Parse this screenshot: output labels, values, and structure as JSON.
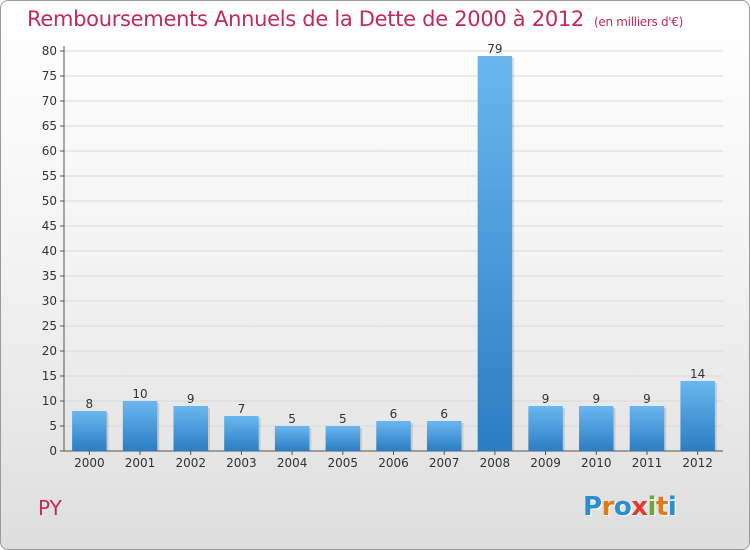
{
  "title": "Remboursements Annuels de la Dette de 2000 à 2012",
  "unit_note": "(en milliers d'€)",
  "commune": "PY",
  "logo": {
    "letters": [
      {
        "ch": "P",
        "color": "#2a8fcf"
      },
      {
        "ch": "r",
        "color": "#e07b1c"
      },
      {
        "ch": "o",
        "color": "#2a8fcf"
      },
      {
        "ch": "x",
        "color": "#e03a2f"
      },
      {
        "ch": "i",
        "color": "#6aa83a"
      },
      {
        "ch": "t",
        "color": "#e07b1c"
      },
      {
        "ch": "i",
        "color": "#2a8fcf"
      }
    ]
  },
  "colors": {
    "bar_light": "#6ab7f0",
    "bar_dark": "#2b7dc2",
    "grid": "#d9d9d9",
    "axis": "#555555"
  },
  "chart_data": {
    "type": "bar",
    "categories": [
      "2000",
      "2001",
      "2002",
      "2003",
      "2004",
      "2005",
      "2006",
      "2007",
      "2008",
      "2009",
      "2010",
      "2011",
      "2012"
    ],
    "values": [
      8,
      10,
      9,
      7,
      5,
      5,
      6,
      6,
      79,
      9,
      9,
      9,
      14
    ],
    "ylim": [
      0,
      80
    ],
    "yticks": [
      0,
      5,
      10,
      15,
      20,
      25,
      30,
      35,
      40,
      45,
      50,
      55,
      60,
      65,
      70,
      75,
      80
    ],
    "grid": true,
    "xlabel": "",
    "ylabel": ""
  }
}
